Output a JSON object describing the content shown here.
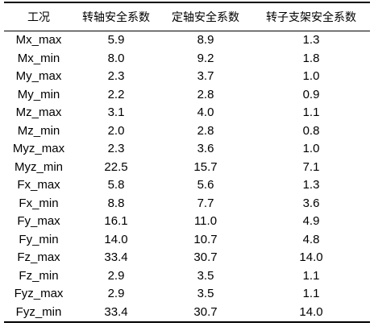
{
  "table": {
    "headers": [
      "工况",
      "转轴安全系数",
      "定轴安全系数",
      "转子支架安全系数"
    ],
    "rows": [
      [
        "Mx_max",
        "5.9",
        "8.9",
        "1.3"
      ],
      [
        "Mx_min",
        "8.0",
        "9.2",
        "1.8"
      ],
      [
        "My_max",
        "2.3",
        "3.7",
        "1.0"
      ],
      [
        "My_min",
        "2.2",
        "2.8",
        "0.9"
      ],
      [
        "Mz_max",
        "3.1",
        "4.0",
        "1.1"
      ],
      [
        "Mz_min",
        "2.0",
        "2.8",
        "0.8"
      ],
      [
        "Myz_max",
        "2.3",
        "3.6",
        "1.0"
      ],
      [
        "Myz_min",
        "22.5",
        "15.7",
        "7.1"
      ],
      [
        "Fx_max",
        "5.8",
        "5.6",
        "1.3"
      ],
      [
        "Fx_min",
        "8.8",
        "7.7",
        "3.6"
      ],
      [
        "Fy_max",
        "16.1",
        "11.0",
        "4.9"
      ],
      [
        "Fy_min",
        "14.0",
        "10.7",
        "4.8"
      ],
      [
        "Fz_max",
        "33.4",
        "30.7",
        "14.0"
      ],
      [
        "Fz_min",
        "2.9",
        "3.5",
        "1.1"
      ],
      [
        "Fyz_max",
        "2.9",
        "3.5",
        "1.1"
      ],
      [
        "Fyz_min",
        "33.4",
        "30.7",
        "14.0"
      ]
    ]
  }
}
